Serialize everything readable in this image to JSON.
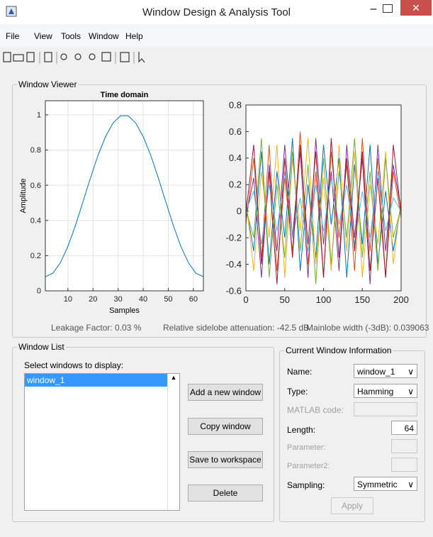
{
  "window": {
    "title": "Window Design & Analysis Tool"
  },
  "menu": [
    "File",
    "View",
    "Tools",
    "Window",
    "Help"
  ],
  "viewer": {
    "title": "Window Viewer",
    "footer": [
      "Leakage Factor: 0.03 %",
      "Relative sidelobe attenuation: -42.5 dB",
      "Mainlobe width (-3dB): 0.039063"
    ]
  },
  "chart_data": [
    {
      "type": "line",
      "title": "Time domain",
      "xlabel": "Samples",
      "ylabel": "Amplitude",
      "x": [
        1,
        4,
        7,
        10,
        13,
        16,
        19,
        22,
        25,
        28,
        31,
        34,
        37,
        40,
        43,
        46,
        49,
        52,
        55,
        58,
        61,
        64
      ],
      "series": [
        {
          "color": "#0072bd",
          "values": [
            0.08,
            0.1,
            0.16,
            0.253,
            0.372,
            0.506,
            0.642,
            0.77,
            0.877,
            0.954,
            0.995,
            0.995,
            0.954,
            0.877,
            0.77,
            0.642,
            0.506,
            0.372,
            0.253,
            0.16,
            0.1,
            0.08
          ]
        }
      ],
      "xlim": [
        1,
        64
      ],
      "ylim": [
        0,
        1.08
      ],
      "xticks": [
        10,
        20,
        30,
        40,
        50,
        60
      ],
      "yticks": [
        0,
        0.2,
        0.4,
        0.6,
        0.8,
        1
      ],
      "grid": true
    },
    {
      "type": "line",
      "x": [
        0,
        10,
        20,
        30,
        40,
        50,
        60,
        70,
        80,
        90,
        100,
        110,
        120,
        130,
        140,
        150,
        160,
        170,
        180,
        190,
        200
      ],
      "series": [
        {
          "color": "#0072bd",
          "values": [
            0.05,
            -0.3,
            0.45,
            -0.4,
            0.3,
            -0.2,
            0.55,
            -0.45,
            0.2,
            -0.35,
            0.5,
            -0.1,
            0.4,
            -0.5,
            0.35,
            -0.25,
            0.5,
            -0.4,
            0.15,
            -0.3,
            0.05
          ]
        },
        {
          "color": "#d95319",
          "values": [
            -0.1,
            0.4,
            -0.35,
            0.5,
            -0.45,
            0.25,
            -0.3,
            0.6,
            -0.4,
            0.3,
            -0.5,
            0.45,
            -0.2,
            0.35,
            -0.45,
            0.55,
            -0.3,
            0.4,
            -0.5,
            0.3,
            -0.05
          ]
        },
        {
          "color": "#edb120",
          "values": [
            0.1,
            -0.45,
            0.3,
            -0.2,
            0.5,
            -0.5,
            0.4,
            -0.15,
            0.55,
            -0.4,
            0.25,
            -0.45,
            0.5,
            -0.3,
            0.45,
            -0.5,
            0.2,
            -0.25,
            0.45,
            -0.4,
            0.1
          ]
        },
        {
          "color": "#7e2f8e",
          "values": [
            -0.05,
            0.25,
            -0.5,
            0.35,
            -0.3,
            0.5,
            -0.2,
            0.45,
            -0.5,
            0.55,
            -0.25,
            0.3,
            -0.45,
            0.5,
            -0.2,
            0.4,
            -0.55,
            0.5,
            -0.3,
            0.35,
            0
          ]
        },
        {
          "color": "#77ac30",
          "values": [
            0.02,
            -0.2,
            0.55,
            -0.5,
            0.2,
            -0.35,
            0.45,
            -0.3,
            0.35,
            -0.55,
            0.4,
            -0.4,
            0.3,
            -0.2,
            0.55,
            -0.35,
            0.3,
            -0.45,
            0.4,
            -0.2,
            0.03
          ]
        },
        {
          "color": "#4dbeee",
          "values": [
            0,
            0.15,
            -0.25,
            0.2,
            -0.15,
            0.3,
            -0.2,
            0.1,
            -0.3,
            0.2,
            -0.15,
            0.25,
            -0.1,
            0.2,
            -0.25,
            0.15,
            -0.2,
            0.3,
            -0.15,
            0.1,
            0
          ]
        },
        {
          "color": "#a2142f",
          "values": [
            -0.02,
            0.5,
            -0.4,
            0.3,
            -0.55,
            0.4,
            -0.35,
            0.5,
            -0.25,
            0.45,
            -0.5,
            0.55,
            -0.35,
            0.4,
            -0.3,
            0.45,
            -0.45,
            0.25,
            -0.5,
            0.5,
            -0.02
          ]
        }
      ],
      "xlim": [
        0,
        200
      ],
      "ylim": [
        -0.6,
        0.8
      ],
      "xticks": [
        0,
        50,
        100,
        150,
        200
      ],
      "yticks": [
        -0.6,
        -0.4,
        -0.2,
        0,
        0.2,
        0.4,
        0.6,
        0.8
      ],
      "grid": false
    }
  ],
  "window_list": {
    "title": "Window List",
    "prompt": "Select windows to display:",
    "items": [
      "window_1"
    ],
    "buttons": [
      "Add a new window",
      "Copy window",
      "Save to workspace",
      "Delete"
    ]
  },
  "info": {
    "title": "Current Window Information",
    "name": {
      "label": "Name:",
      "value": "window_1"
    },
    "type": {
      "label": "Type:",
      "value": "Hamming"
    },
    "code": {
      "label": "MATLAB code:"
    },
    "length": {
      "label": "Length:",
      "value": 64
    },
    "parameter": {
      "label": "Parameter:"
    },
    "parameter2": {
      "label": "Parameter2:"
    },
    "sampling": {
      "label": "Sampling:",
      "value": "Symmetric"
    },
    "apply": "Apply"
  }
}
